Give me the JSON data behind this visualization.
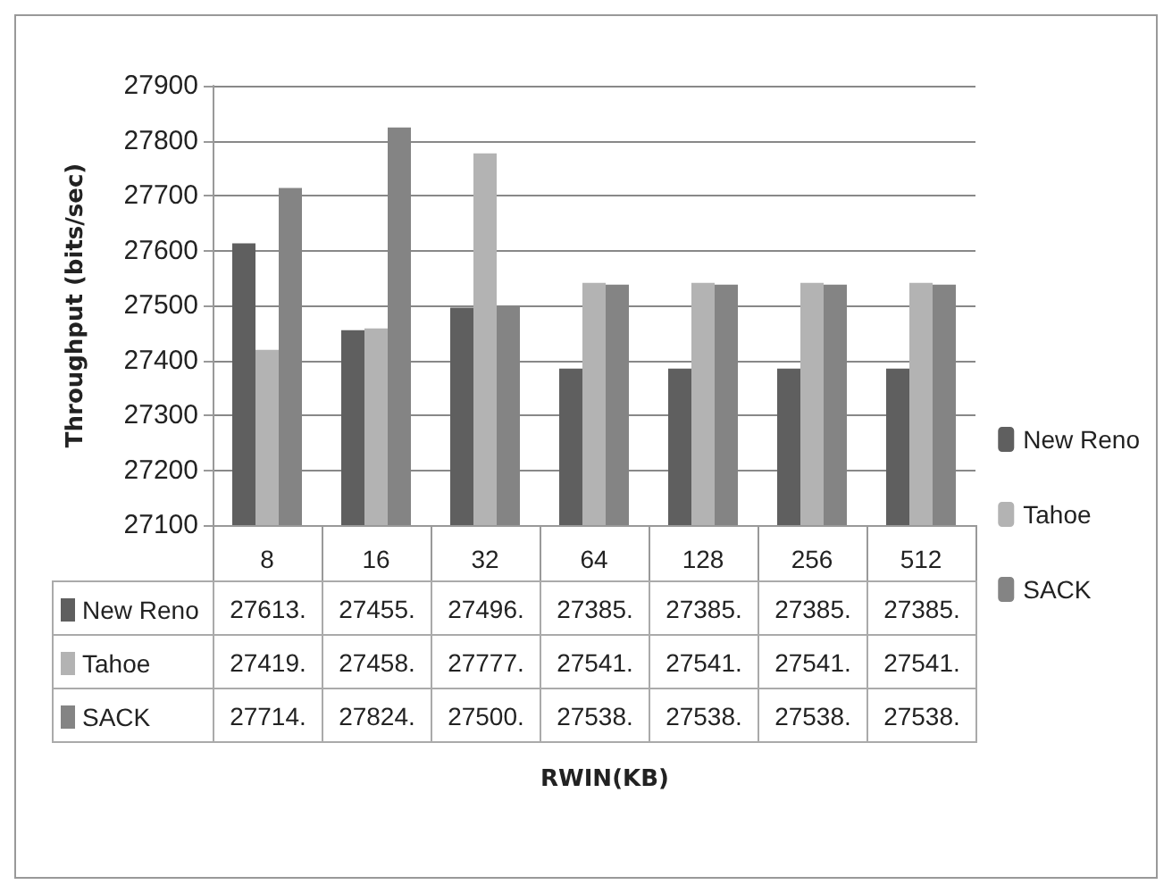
{
  "chart_data": {
    "type": "bar",
    "ylabel": "Throughput (bits/sec)",
    "annotations": [
      "RWIN(KB)"
    ],
    "categories": [
      "8",
      "16",
      "32",
      "64",
      "128",
      "256",
      "512"
    ],
    "series": [
      {
        "name": "New Reno",
        "color": "#5f5f5f",
        "values": [
          27613,
          27455,
          27496,
          27385,
          27385,
          27385,
          27385
        ],
        "value_labels": [
          "27613.",
          "27455.",
          "27496.",
          "27385.",
          "27385.",
          "27385.",
          "27385."
        ]
      },
      {
        "name": "Tahoe",
        "color": "#b3b3b3",
        "values": [
          27419,
          27458,
          27777,
          27541,
          27541,
          27541,
          27541
        ],
        "value_labels": [
          "27419.",
          "27458.",
          "27777.",
          "27541.",
          "27541.",
          "27541.",
          "27541."
        ]
      },
      {
        "name": "SACK",
        "color": "#848484",
        "values": [
          27714,
          27824,
          27500,
          27538,
          27538,
          27538,
          27538
        ],
        "value_labels": [
          "27714.",
          "27824.",
          "27500.",
          "27538.",
          "27538.",
          "27538.",
          "27538."
        ]
      }
    ],
    "ylim": [
      27100,
      27900
    ],
    "yticks": [
      27100,
      27200,
      27300,
      27400,
      27500,
      27600,
      27700,
      27800,
      27900
    ],
    "grid": "y",
    "legend": "right"
  }
}
